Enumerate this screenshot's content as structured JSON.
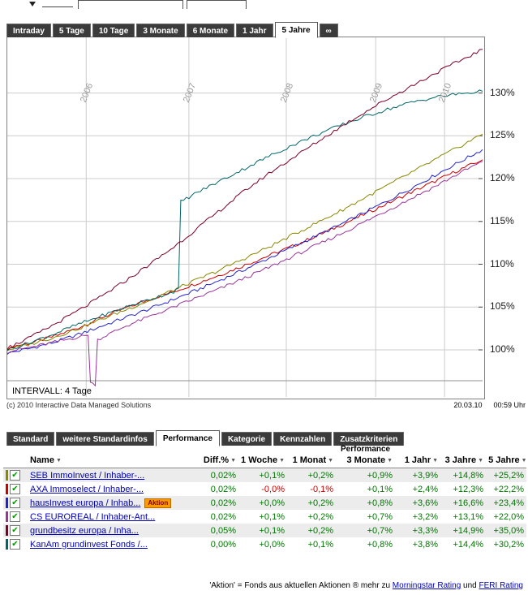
{
  "chart_tabs": {
    "items": [
      {
        "label": "Intraday",
        "active": false
      },
      {
        "label": "5 Tage",
        "active": false
      },
      {
        "label": "10 Tage",
        "active": false
      },
      {
        "label": "3 Monate",
        "active": false
      },
      {
        "label": "6 Monate",
        "active": false
      },
      {
        "label": "1 Jahr",
        "active": false
      },
      {
        "label": "5 Jahre",
        "active": true
      },
      {
        "label": "∞",
        "active": false
      }
    ]
  },
  "chart": {
    "interval_label": "INTERVALL: 4 Tage",
    "copyright": "(c) 2010 Interactive Data Managed Solutions",
    "date": "20.03.10",
    "time": "00:59 Uhr"
  },
  "chart_data": {
    "type": "line",
    "title": "",
    "xlabel": "",
    "ylabel": "",
    "legend": "none",
    "grid": true,
    "x_axis": {
      "labels": [
        "2006",
        "2007",
        "2008",
        "2009",
        "2010"
      ],
      "positions": [
        0.166,
        0.382,
        0.587,
        0.775,
        0.92
      ]
    },
    "y_axis": {
      "ticks": [
        100,
        105,
        110,
        115,
        120,
        125,
        130
      ],
      "tick_format": "{v}%",
      "ylim": [
        94.5,
        136.5
      ]
    },
    "series": [
      {
        "name": "AXA Immoselect",
        "color": "#cc0000",
        "points": [
          [
            0,
            100.3
          ],
          [
            0.05,
            100.8
          ],
          [
            0.1,
            101.6
          ],
          [
            0.15,
            102.6
          ],
          [
            0.2,
            103.8
          ],
          [
            0.25,
            104.9
          ],
          [
            0.3,
            105.9
          ],
          [
            0.35,
            106.8
          ],
          [
            0.4,
            107.8
          ],
          [
            0.45,
            108.8
          ],
          [
            0.5,
            109.9
          ],
          [
            0.55,
            111.0
          ],
          [
            0.6,
            112.1
          ],
          [
            0.65,
            113.3
          ],
          [
            0.7,
            114.5
          ],
          [
            0.75,
            115.8
          ],
          [
            0.8,
            117.1
          ],
          [
            0.85,
            118.4
          ],
          [
            0.9,
            119.7
          ],
          [
            0.95,
            121.0
          ],
          [
            1,
            122.2
          ]
        ]
      },
      {
        "name": "hausInvest europa",
        "color": "#2222cc",
        "points": [
          [
            0,
            99.6
          ],
          [
            0.05,
            100.2
          ],
          [
            0.1,
            100.9
          ],
          [
            0.15,
            101.8
          ],
          [
            0.2,
            102.8
          ],
          [
            0.25,
            103.8
          ],
          [
            0.3,
            104.8
          ],
          [
            0.35,
            105.9
          ],
          [
            0.4,
            107.0
          ],
          [
            0.45,
            108.2
          ],
          [
            0.5,
            109.4
          ],
          [
            0.55,
            110.7
          ],
          [
            0.6,
            112.0
          ],
          [
            0.65,
            113.3
          ],
          [
            0.7,
            114.6
          ],
          [
            0.75,
            116.0
          ],
          [
            0.8,
            117.4
          ],
          [
            0.85,
            118.9
          ],
          [
            0.9,
            120.4
          ],
          [
            0.95,
            121.9
          ],
          [
            1,
            123.4
          ]
        ]
      },
      {
        "name": "CS EUROREAL",
        "color": "#993399",
        "points": [
          [
            0,
            99.8
          ],
          [
            0.05,
            100.3
          ],
          [
            0.1,
            100.9
          ],
          [
            0.15,
            101.5
          ],
          [
            0.17,
            101.7
          ],
          [
            0.175,
            96.2
          ],
          [
            0.185,
            95.8
          ],
          [
            0.19,
            101.2
          ],
          [
            0.25,
            102.8
          ],
          [
            0.3,
            103.9
          ],
          [
            0.35,
            105.0
          ],
          [
            0.4,
            106.1
          ],
          [
            0.45,
            107.2
          ],
          [
            0.5,
            108.4
          ],
          [
            0.55,
            109.6
          ],
          [
            0.6,
            110.9
          ],
          [
            0.65,
            112.2
          ],
          [
            0.7,
            113.5
          ],
          [
            0.75,
            114.9
          ],
          [
            0.8,
            116.3
          ],
          [
            0.85,
            117.7
          ],
          [
            0.9,
            119.1
          ],
          [
            0.95,
            120.6
          ],
          [
            1,
            122.0
          ]
        ]
      },
      {
        "name": "SEB ImmoInvest",
        "color": "#888800",
        "points": [
          [
            0,
            100.0
          ],
          [
            0.05,
            100.7
          ],
          [
            0.1,
            101.5
          ],
          [
            0.15,
            102.5
          ],
          [
            0.2,
            103.6
          ],
          [
            0.25,
            104.7
          ],
          [
            0.3,
            105.8
          ],
          [
            0.35,
            107.0
          ],
          [
            0.4,
            108.2
          ],
          [
            0.45,
            109.4
          ],
          [
            0.5,
            110.7
          ],
          [
            0.55,
            112.0
          ],
          [
            0.6,
            113.4
          ],
          [
            0.65,
            114.8
          ],
          [
            0.7,
            116.2
          ],
          [
            0.75,
            117.7
          ],
          [
            0.8,
            119.2
          ],
          [
            0.85,
            120.7
          ],
          [
            0.9,
            122.2
          ],
          [
            0.95,
            123.7
          ],
          [
            1,
            125.2
          ]
        ]
      },
      {
        "name": "KanAm grundinvest",
        "color": "#006666",
        "points": [
          [
            0,
            100.0
          ],
          [
            0.05,
            100.9
          ],
          [
            0.1,
            101.9
          ],
          [
            0.15,
            103.0
          ],
          [
            0.2,
            104.0
          ],
          [
            0.25,
            105.0
          ],
          [
            0.3,
            105.9
          ],
          [
            0.35,
            106.8
          ],
          [
            0.36,
            107.2
          ],
          [
            0.365,
            117.3
          ],
          [
            0.4,
            118.4
          ],
          [
            0.45,
            119.8
          ],
          [
            0.5,
            121.2
          ],
          [
            0.55,
            122.6
          ],
          [
            0.6,
            123.9
          ],
          [
            0.65,
            125.1
          ],
          [
            0.7,
            126.2
          ],
          [
            0.75,
            127.2
          ],
          [
            0.8,
            128.1
          ],
          [
            0.85,
            128.9
          ],
          [
            0.9,
            129.5
          ],
          [
            0.95,
            129.9
          ],
          [
            1,
            130.2
          ]
        ]
      },
      {
        "name": "grundbesitz europa",
        "color": "#7a0026",
        "points": [
          [
            0,
            100.2
          ],
          [
            0.05,
            101.5
          ],
          [
            0.1,
            103.0
          ],
          [
            0.15,
            104.6
          ],
          [
            0.2,
            106.3
          ],
          [
            0.25,
            108.1
          ],
          [
            0.3,
            110.0
          ],
          [
            0.35,
            112.0
          ],
          [
            0.4,
            114.2
          ],
          [
            0.45,
            116.4
          ],
          [
            0.5,
            118.6
          ],
          [
            0.55,
            120.6
          ],
          [
            0.6,
            122.4
          ],
          [
            0.65,
            124.2
          ],
          [
            0.7,
            126.0
          ],
          [
            0.75,
            127.7
          ],
          [
            0.8,
            129.3
          ],
          [
            0.85,
            130.8
          ],
          [
            0.9,
            132.3
          ],
          [
            0.95,
            133.7
          ],
          [
            1,
            135.1
          ]
        ]
      }
    ]
  },
  "table_tabs": {
    "items": [
      {
        "label": "Standard",
        "active": false
      },
      {
        "label": "weitere Standardinfos",
        "active": false
      },
      {
        "label": "Performance",
        "active": true
      },
      {
        "label": "Kategorie",
        "active": false
      },
      {
        "label": "Kennzahlen",
        "active": false
      },
      {
        "label": "Zusatzkriterien",
        "active": false
      }
    ]
  },
  "table": {
    "group_header": "Performance",
    "columns": [
      "Name",
      "Diff.%",
      "1 Woche",
      "1 Monat",
      "3 Monate",
      "1 Jahr",
      "3 Jahre",
      "5 Jahre"
    ],
    "rows": [
      {
        "name": "SEB ImmoInvest / Inhaber-...",
        "color": "#888800",
        "badge": "",
        "values": [
          "0,02%",
          "+0,1%",
          "+0,2%",
          "+0,9%",
          "+3,9%",
          "+14,8%",
          "+25,2%"
        ]
      },
      {
        "name": "AXA Immoselect / Inhaber-...",
        "color": "#cc0000",
        "badge": "",
        "values": [
          "0,02%",
          "-0,0%",
          "-0,1%",
          "+0,1%",
          "+2,4%",
          "+12,3%",
          "+22,2%"
        ]
      },
      {
        "name": "hausInvest europa / Inhab...",
        "color": "#2222cc",
        "badge": "Aktion",
        "values": [
          "0,02%",
          "+0,0%",
          "+0,2%",
          "+0,8%",
          "+3,6%",
          "+16,6%",
          "+23,4%"
        ]
      },
      {
        "name": "CS EUROREAL / Inhaber-Ant...",
        "color": "#993399",
        "badge": "",
        "values": [
          "0,02%",
          "+0,1%",
          "+0,2%",
          "+0,7%",
          "+3,2%",
          "+13,1%",
          "+22,0%"
        ]
      },
      {
        "name": "grundbesitz europa / Inha...",
        "color": "#7a0026",
        "badge": "",
        "values": [
          "0,05%",
          "+0,1%",
          "+0,2%",
          "+0,7%",
          "+3,3%",
          "+14,9%",
          "+35,0%"
        ]
      },
      {
        "name": "KanAm grundinvest Fonds /...",
        "color": "#006666",
        "badge": "",
        "values": [
          "0,00%",
          "+0,0%",
          "+0,1%",
          "+0,8%",
          "+3,8%",
          "+14,4%",
          "+30,2%"
        ]
      }
    ]
  },
  "footer": {
    "text": "'Aktion' = Fonds aus aktuellen Aktionen ® mehr zu ",
    "link_morningstar": "Morningstar Rating",
    "and_text": " und ",
    "link_feri": "FERI Rating"
  }
}
